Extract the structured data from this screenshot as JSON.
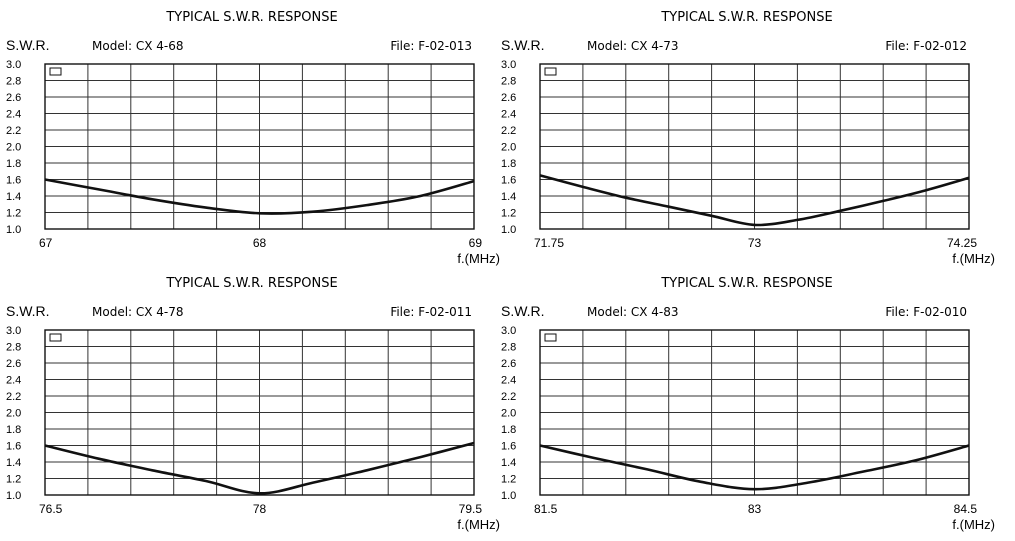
{
  "chart_data": [
    {
      "type": "line",
      "title": "TYPICAL S.W.R. RESPONSE",
      "ylabel": "S.W.R.",
      "model_label": "Model:",
      "model": "CX 4-68",
      "file_label": "File:",
      "file": "F-02-013",
      "xlabel": "f.(MHz)",
      "xlim": [
        67,
        69
      ],
      "ylim": [
        1.0,
        3.0
      ],
      "x_tick_labels": [
        "67",
        "68",
        "69"
      ],
      "y_tick_labels": [
        "3.0",
        "2.8",
        "2.6",
        "2.4",
        "2.2",
        "2.0",
        "1.8",
        "1.6",
        "1.4",
        "1.2",
        "1.0"
      ],
      "grid": true,
      "series": [
        {
          "x": [
            67,
            67.25,
            67.5,
            67.75,
            68,
            68.25,
            68.5,
            68.75,
            69
          ],
          "y": [
            1.6,
            1.48,
            1.36,
            1.26,
            1.19,
            1.21,
            1.29,
            1.4,
            1.58
          ]
        }
      ]
    },
    {
      "type": "line",
      "title": "TYPICAL S.W.R. RESPONSE",
      "ylabel": "S.W.R.",
      "model_label": "Model:",
      "model": "CX 4-73",
      "file_label": "File:",
      "file": "F-02-012",
      "xlabel": "f.(MHz)",
      "xlim": [
        71.75,
        74.25
      ],
      "ylim": [
        1.0,
        3.0
      ],
      "x_tick_labels": [
        "71.75",
        "73",
        "74.25"
      ],
      "y_tick_labels": [
        "3.0",
        "2.8",
        "2.6",
        "2.4",
        "2.2",
        "2.0",
        "1.8",
        "1.6",
        "1.4",
        "1.2",
        "1.0"
      ],
      "grid": true,
      "series": [
        {
          "x": [
            71.75,
            72.0,
            72.25,
            72.5,
            72.75,
            73.0,
            73.25,
            73.5,
            73.75,
            74.0,
            74.25
          ],
          "y": [
            1.65,
            1.51,
            1.38,
            1.27,
            1.16,
            1.05,
            1.11,
            1.22,
            1.34,
            1.47,
            1.62
          ]
        }
      ]
    },
    {
      "type": "line",
      "title": "TYPICAL S.W.R. RESPONSE",
      "ylabel": "S.W.R.",
      "model_label": "Model:",
      "model": "CX 4-78",
      "file_label": "File:",
      "file": "F-02-011",
      "xlabel": "f.(MHz)",
      "xlim": [
        76.5,
        79.5
      ],
      "ylim": [
        1.0,
        3.0
      ],
      "x_tick_labels": [
        "76.5",
        "78",
        "79.5"
      ],
      "y_tick_labels": [
        "3.0",
        "2.8",
        "2.6",
        "2.4",
        "2.2",
        "2.0",
        "1.8",
        "1.6",
        "1.4",
        "1.2",
        "1.0"
      ],
      "grid": true,
      "series": [
        {
          "x": [
            76.5,
            76.875,
            77.25,
            77.625,
            78.0,
            78.375,
            78.75,
            79.125,
            79.5
          ],
          "y": [
            1.6,
            1.44,
            1.3,
            1.17,
            1.02,
            1.15,
            1.3,
            1.46,
            1.63
          ]
        }
      ]
    },
    {
      "type": "line",
      "title": "TYPICAL S.W.R. RESPONSE",
      "ylabel": "S.W.R.",
      "model_label": "Model:",
      "model": "CX 4-83",
      "file_label": "File:",
      "file": "F-02-010",
      "xlabel": "f.(MHz)",
      "xlim": [
        81.5,
        84.5
      ],
      "ylim": [
        1.0,
        3.0
      ],
      "x_tick_labels": [
        "81.5",
        "83",
        "84.5"
      ],
      "y_tick_labels": [
        "3.0",
        "2.8",
        "2.6",
        "2.4",
        "2.2",
        "2.0",
        "1.8",
        "1.6",
        "1.4",
        "1.2",
        "1.0"
      ],
      "grid": true,
      "series": [
        {
          "x": [
            81.5,
            81.875,
            82.25,
            82.625,
            83.0,
            83.375,
            83.75,
            84.125,
            84.5
          ],
          "y": [
            1.6,
            1.45,
            1.31,
            1.16,
            1.07,
            1.15,
            1.28,
            1.42,
            1.6
          ]
        }
      ]
    }
  ]
}
